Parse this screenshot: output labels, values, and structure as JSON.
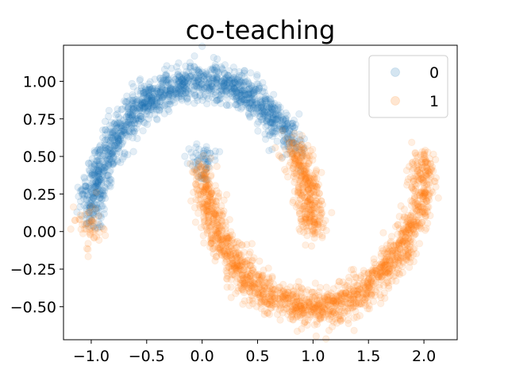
{
  "chart_data": {
    "type": "scatter",
    "title": "co-teaching",
    "xlabel": "",
    "ylabel": "",
    "xlim": [
      -1.25,
      2.3
    ],
    "ylim": [
      -0.72,
      1.24
    ],
    "xticks": [
      -1.0,
      -0.5,
      0.0,
      0.5,
      1.0,
      1.5,
      2.0
    ],
    "xtick_labels": [
      "−1.0",
      "−0.5",
      "0.0",
      "0.5",
      "1.0",
      "1.5",
      "2.0"
    ],
    "yticks": [
      -0.5,
      -0.25,
      0.0,
      0.25,
      0.5,
      0.75,
      1.0
    ],
    "ytick_labels": [
      "−0.50",
      "−0.25",
      "0.00",
      "0.25",
      "0.50",
      "0.75",
      "1.00"
    ],
    "grid": false,
    "legend_position": "top-right",
    "marker_alpha": 0.12,
    "series": [
      {
        "name": "0",
        "color": "#1f77b4",
        "arcs": [
          {
            "cx": 0.0,
            "cy": 0.0,
            "r": 1.0,
            "theta_start_deg": 35,
            "theta_end_deg": 175,
            "noise": 0.06,
            "points": 1500
          },
          {
            "cx": 1.0,
            "cy": 0.5,
            "r": 1.0,
            "theta_start_deg": 178,
            "theta_end_deg": 185,
            "noise": 0.06,
            "points": 60
          }
        ]
      },
      {
        "name": "1",
        "color": "#ff7f0e",
        "arcs": [
          {
            "cx": 1.0,
            "cy": 0.5,
            "r": 1.0,
            "theta_start_deg": 185,
            "theta_end_deg": 360,
            "noise": 0.06,
            "points": 1700
          },
          {
            "cx": 0.0,
            "cy": 0.0,
            "r": 1.0,
            "theta_start_deg": 0,
            "theta_end_deg": 35,
            "noise": 0.06,
            "points": 380
          },
          {
            "cx": 0.0,
            "cy": 0.0,
            "r": 1.0,
            "theta_start_deg": 175,
            "theta_end_deg": 180,
            "noise": 0.06,
            "points": 50
          }
        ]
      }
    ]
  }
}
